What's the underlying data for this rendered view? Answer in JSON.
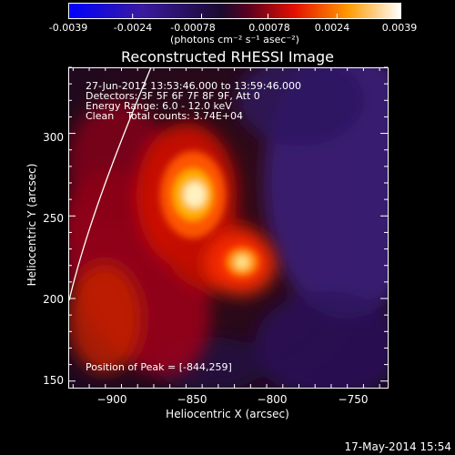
{
  "colorbar": {
    "ticks": [
      "-0.0039",
      "-0.0024",
      "-0.00078",
      "0.00078",
      "0.0024",
      "0.0039"
    ],
    "tick_values": [
      -0.0039,
      -0.0024,
      -0.00078,
      0.00078,
      0.0024,
      0.0039
    ],
    "range": [
      -0.0039,
      0.0039
    ],
    "unit_label": "(photons cm⁻² s⁻¹ asec⁻²)"
  },
  "title": "Reconstructed RHESSI Image",
  "info": {
    "time_range": "27-Jun-2012 13:53:46.000 to 13:59:46.000",
    "detectors": "Detectors: 3F 5F 6F 7F 8F 9F, Att 0",
    "energy": "Energy Range: 6.0 - 12.0 keV",
    "clean": "Clean    Total counts: 3.74E+04",
    "peak": "Position of Peak = [-844,259]"
  },
  "footer": {
    "date": "17-May-2014 15:54"
  },
  "chart_data": {
    "type": "heatmap",
    "title": "Reconstructed RHESSI Image",
    "xlabel": "Heliocentric X (arcsec)",
    "ylabel": "Heliocentric Y (arcsec)",
    "xlim": [
      -928,
      -730
    ],
    "ylim": [
      146,
      340
    ],
    "xticks": [
      -900,
      -850,
      -800,
      -750
    ],
    "xtick_labels": [
      "−900",
      "−850",
      "−800",
      "−750"
    ],
    "yticks": [
      150,
      200,
      250,
      300
    ],
    "ytick_labels": [
      "150",
      "200",
      "250",
      "300"
    ],
    "peak": [
      -844,
      259
    ],
    "sources": [
      {
        "x": -844,
        "y": 259,
        "peak_value": 0.0039,
        "sx": 10,
        "sy": 14
      },
      {
        "x": -816,
        "y": 222,
        "peak_value": 0.0031,
        "sx": 8,
        "sy": 8
      }
    ],
    "colormap": [
      "#0000ff",
      "#3a1aa0",
      "#000000",
      "#8a0038",
      "#ff2000",
      "#ffa000",
      "#ffffff"
    ]
  }
}
